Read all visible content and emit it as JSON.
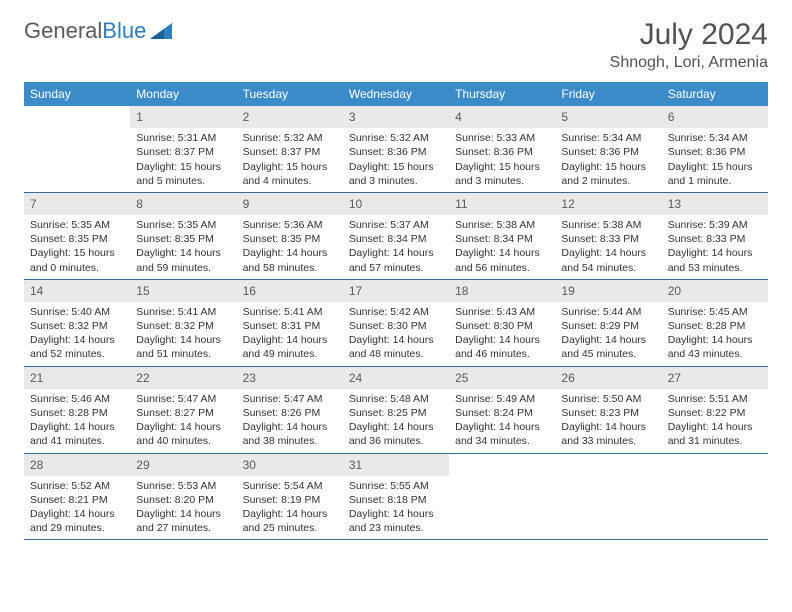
{
  "logo": {
    "word1": "General",
    "word2": "Blue"
  },
  "title": "July 2024",
  "subtitle": "Shnogh, Lori, Armenia",
  "day_headers": [
    "Sunday",
    "Monday",
    "Tuesday",
    "Wednesday",
    "Thursday",
    "Friday",
    "Saturday"
  ],
  "colors": {
    "header_bg": "#3b8bc9",
    "header_fg": "#ffffff",
    "daynum_bg": "#e9e9e9",
    "cell_border": "#3b6a9a",
    "title_color": "#525252",
    "body_text": "#333333"
  },
  "weeks": [
    [
      {
        "n": "",
        "sr": "",
        "ss": "",
        "dl": ""
      },
      {
        "n": "1",
        "sr": "Sunrise: 5:31 AM",
        "ss": "Sunset: 8:37 PM",
        "dl": "Daylight: 15 hours and 5 minutes."
      },
      {
        "n": "2",
        "sr": "Sunrise: 5:32 AM",
        "ss": "Sunset: 8:37 PM",
        "dl": "Daylight: 15 hours and 4 minutes."
      },
      {
        "n": "3",
        "sr": "Sunrise: 5:32 AM",
        "ss": "Sunset: 8:36 PM",
        "dl": "Daylight: 15 hours and 3 minutes."
      },
      {
        "n": "4",
        "sr": "Sunrise: 5:33 AM",
        "ss": "Sunset: 8:36 PM",
        "dl": "Daylight: 15 hours and 3 minutes."
      },
      {
        "n": "5",
        "sr": "Sunrise: 5:34 AM",
        "ss": "Sunset: 8:36 PM",
        "dl": "Daylight: 15 hours and 2 minutes."
      },
      {
        "n": "6",
        "sr": "Sunrise: 5:34 AM",
        "ss": "Sunset: 8:36 PM",
        "dl": "Daylight: 15 hours and 1 minute."
      }
    ],
    [
      {
        "n": "7",
        "sr": "Sunrise: 5:35 AM",
        "ss": "Sunset: 8:35 PM",
        "dl": "Daylight: 15 hours and 0 minutes."
      },
      {
        "n": "8",
        "sr": "Sunrise: 5:35 AM",
        "ss": "Sunset: 8:35 PM",
        "dl": "Daylight: 14 hours and 59 minutes."
      },
      {
        "n": "9",
        "sr": "Sunrise: 5:36 AM",
        "ss": "Sunset: 8:35 PM",
        "dl": "Daylight: 14 hours and 58 minutes."
      },
      {
        "n": "10",
        "sr": "Sunrise: 5:37 AM",
        "ss": "Sunset: 8:34 PM",
        "dl": "Daylight: 14 hours and 57 minutes."
      },
      {
        "n": "11",
        "sr": "Sunrise: 5:38 AM",
        "ss": "Sunset: 8:34 PM",
        "dl": "Daylight: 14 hours and 56 minutes."
      },
      {
        "n": "12",
        "sr": "Sunrise: 5:38 AM",
        "ss": "Sunset: 8:33 PM",
        "dl": "Daylight: 14 hours and 54 minutes."
      },
      {
        "n": "13",
        "sr": "Sunrise: 5:39 AM",
        "ss": "Sunset: 8:33 PM",
        "dl": "Daylight: 14 hours and 53 minutes."
      }
    ],
    [
      {
        "n": "14",
        "sr": "Sunrise: 5:40 AM",
        "ss": "Sunset: 8:32 PM",
        "dl": "Daylight: 14 hours and 52 minutes."
      },
      {
        "n": "15",
        "sr": "Sunrise: 5:41 AM",
        "ss": "Sunset: 8:32 PM",
        "dl": "Daylight: 14 hours and 51 minutes."
      },
      {
        "n": "16",
        "sr": "Sunrise: 5:41 AM",
        "ss": "Sunset: 8:31 PM",
        "dl": "Daylight: 14 hours and 49 minutes."
      },
      {
        "n": "17",
        "sr": "Sunrise: 5:42 AM",
        "ss": "Sunset: 8:30 PM",
        "dl": "Daylight: 14 hours and 48 minutes."
      },
      {
        "n": "18",
        "sr": "Sunrise: 5:43 AM",
        "ss": "Sunset: 8:30 PM",
        "dl": "Daylight: 14 hours and 46 minutes."
      },
      {
        "n": "19",
        "sr": "Sunrise: 5:44 AM",
        "ss": "Sunset: 8:29 PM",
        "dl": "Daylight: 14 hours and 45 minutes."
      },
      {
        "n": "20",
        "sr": "Sunrise: 5:45 AM",
        "ss": "Sunset: 8:28 PM",
        "dl": "Daylight: 14 hours and 43 minutes."
      }
    ],
    [
      {
        "n": "21",
        "sr": "Sunrise: 5:46 AM",
        "ss": "Sunset: 8:28 PM",
        "dl": "Daylight: 14 hours and 41 minutes."
      },
      {
        "n": "22",
        "sr": "Sunrise: 5:47 AM",
        "ss": "Sunset: 8:27 PM",
        "dl": "Daylight: 14 hours and 40 minutes."
      },
      {
        "n": "23",
        "sr": "Sunrise: 5:47 AM",
        "ss": "Sunset: 8:26 PM",
        "dl": "Daylight: 14 hours and 38 minutes."
      },
      {
        "n": "24",
        "sr": "Sunrise: 5:48 AM",
        "ss": "Sunset: 8:25 PM",
        "dl": "Daylight: 14 hours and 36 minutes."
      },
      {
        "n": "25",
        "sr": "Sunrise: 5:49 AM",
        "ss": "Sunset: 8:24 PM",
        "dl": "Daylight: 14 hours and 34 minutes."
      },
      {
        "n": "26",
        "sr": "Sunrise: 5:50 AM",
        "ss": "Sunset: 8:23 PM",
        "dl": "Daylight: 14 hours and 33 minutes."
      },
      {
        "n": "27",
        "sr": "Sunrise: 5:51 AM",
        "ss": "Sunset: 8:22 PM",
        "dl": "Daylight: 14 hours and 31 minutes."
      }
    ],
    [
      {
        "n": "28",
        "sr": "Sunrise: 5:52 AM",
        "ss": "Sunset: 8:21 PM",
        "dl": "Daylight: 14 hours and 29 minutes."
      },
      {
        "n": "29",
        "sr": "Sunrise: 5:53 AM",
        "ss": "Sunset: 8:20 PM",
        "dl": "Daylight: 14 hours and 27 minutes."
      },
      {
        "n": "30",
        "sr": "Sunrise: 5:54 AM",
        "ss": "Sunset: 8:19 PM",
        "dl": "Daylight: 14 hours and 25 minutes."
      },
      {
        "n": "31",
        "sr": "Sunrise: 5:55 AM",
        "ss": "Sunset: 8:18 PM",
        "dl": "Daylight: 14 hours and 23 minutes."
      },
      {
        "n": "",
        "sr": "",
        "ss": "",
        "dl": ""
      },
      {
        "n": "",
        "sr": "",
        "ss": "",
        "dl": ""
      },
      {
        "n": "",
        "sr": "",
        "ss": "",
        "dl": ""
      }
    ]
  ]
}
